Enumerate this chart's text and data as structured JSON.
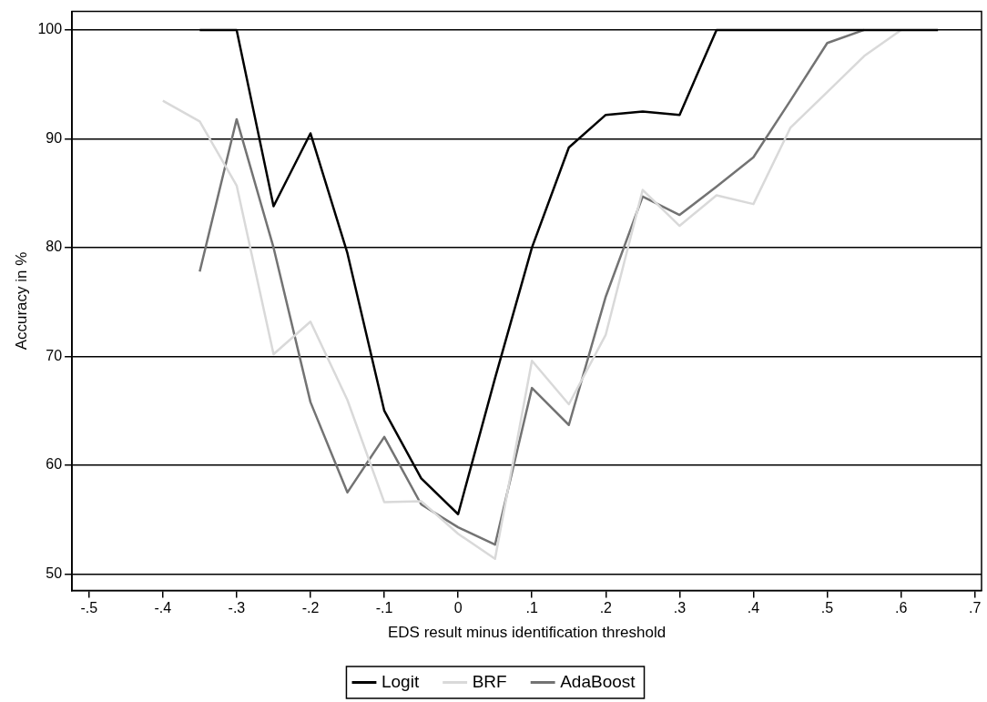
{
  "chart_data": {
    "type": "line",
    "xlabel": "EDS result minus identification threshold",
    "ylabel": "Accuracy in %",
    "xlim": [
      -0.523,
      0.709
    ],
    "ylim": [
      48.5,
      101.7
    ],
    "xticks": [
      {
        "value": -0.5,
        "label": "-.5"
      },
      {
        "value": -0.4,
        "label": "-.4"
      },
      {
        "value": -0.3,
        "label": "-.3"
      },
      {
        "value": -0.2,
        "label": "-.2"
      },
      {
        "value": -0.1,
        "label": "-.1"
      },
      0,
      {
        "value": 0.1,
        "label": ".1"
      },
      {
        "value": 0.2,
        "label": ".2"
      },
      {
        "value": 0.3,
        "label": ".3"
      },
      {
        "value": 0.4,
        "label": ".4"
      },
      {
        "value": 0.5,
        "label": ".5"
      },
      {
        "value": 0.6,
        "label": ".6"
      },
      {
        "value": 0.7,
        "label": ".7"
      }
    ],
    "yticks": [
      50,
      60,
      70,
      80,
      90,
      100
    ],
    "grid": "y",
    "legend": "bottom",
    "marker": "none",
    "line_style": "solid",
    "series": [
      {
        "name": "Logit",
        "color": "#000000",
        "x": [
          -0.35,
          -0.3,
          -0.25,
          -0.2,
          -0.15,
          -0.1,
          -0.05,
          0,
          0.05,
          0.1,
          0.15,
          0.2,
          0.25,
          0.3,
          0.35,
          0.4,
          0.45,
          0.5,
          0.55,
          0.6,
          0.65
        ],
        "values": [
          100,
          100,
          83.8,
          90.5,
          79.5,
          65,
          58.8,
          55.5,
          68,
          80,
          89.2,
          92.2,
          92.5,
          92.2,
          100,
          100,
          100,
          100,
          100,
          100,
          100
        ]
      },
      {
        "name": "BRF",
        "color": "#d9d9d9",
        "x": [
          -0.4,
          -0.35,
          -0.3,
          -0.25,
          -0.2,
          -0.15,
          -0.1,
          -0.05,
          0,
          0.05,
          0.1,
          0.15,
          0.2,
          0.25,
          0.3,
          0.35,
          0.4,
          0.45,
          0.5,
          0.55,
          0.6
        ],
        "values": [
          93.5,
          91.6,
          85.7,
          70.2,
          73.2,
          66,
          56.6,
          56.7,
          53.7,
          51.4,
          69.6,
          65.6,
          72,
          85.3,
          82,
          84.8,
          84,
          91,
          94.3,
          97.6,
          100
        ]
      },
      {
        "name": "AdaBoost",
        "color": "#737373",
        "x": [
          -0.35,
          -0.3,
          -0.25,
          -0.2,
          -0.15,
          -0.1,
          -0.05,
          0,
          0.05,
          0.1,
          0.15,
          0.2,
          0.25,
          0.3,
          0.35,
          0.4,
          0.45,
          0.5,
          0.55
        ],
        "values": [
          77.8,
          91.8,
          80,
          65.8,
          57.5,
          62.6,
          56.4,
          54.3,
          52.7,
          67.1,
          63.7,
          75.5,
          84.7,
          83,
          85.6,
          88.3,
          93.5,
          98.8,
          100
        ]
      }
    ]
  }
}
